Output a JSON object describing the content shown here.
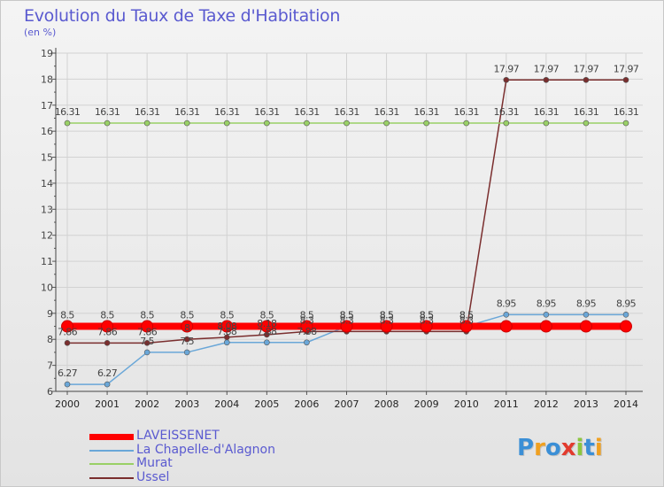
{
  "header": {
    "title": "Evolution du Taux de Taxe d'Habitation",
    "unit": "(en %)"
  },
  "logo": {
    "text": "Proxiti",
    "letters": [
      {
        "ch": "P",
        "color": "#3b8fd6"
      },
      {
        "ch": "r",
        "color": "#f0a020"
      },
      {
        "ch": "o",
        "color": "#3b8fd6"
      },
      {
        "ch": "x",
        "color": "#e23b2e"
      },
      {
        "ch": "i",
        "color": "#8cc63f"
      },
      {
        "ch": "t",
        "color": "#3b8fd6"
      },
      {
        "ch": "i",
        "color": "#f0a020"
      }
    ]
  },
  "chart_data": {
    "type": "line",
    "title": "Evolution du Taux de Taxe d'Habitation",
    "ylabel": "(en %)",
    "xlabel": "",
    "x": [
      "2000",
      "2001",
      "2002",
      "2003",
      "2004",
      "2005",
      "2006",
      "2007",
      "2008",
      "2009",
      "2010",
      "2011",
      "2012",
      "2013",
      "2014"
    ],
    "ylim": [
      6,
      19
    ],
    "yticks": [
      "6",
      "7",
      "8",
      "9",
      "10",
      "11",
      "12",
      "13",
      "14",
      "15",
      "16",
      "17",
      "18",
      "19"
    ],
    "grid": true,
    "legend_position": "bottom-left",
    "series": [
      {
        "name": "LAVEISSENET",
        "color": "#ff0000",
        "values": [
          8.5,
          8.5,
          8.5,
          8.5,
          8.5,
          8.5,
          8.5,
          8.5,
          8.5,
          8.5,
          8.5,
          8.5,
          8.5,
          8.5,
          8.5
        ],
        "labels": [
          "8.5",
          "8.5",
          "8.5",
          "8.5",
          "8.5",
          "8.5",
          "8.5",
          "8.5",
          "8.5",
          "8.5",
          "8.5",
          "",
          "",
          "",
          ""
        ]
      },
      {
        "name": "La Chapelle-d'Alagnon",
        "color": "#6aa7d8",
        "values": [
          6.27,
          6.27,
          7.5,
          7.5,
          7.88,
          7.88,
          7.88,
          8.5,
          8.5,
          8.5,
          8.5,
          8.95,
          8.95,
          8.95,
          8.95
        ],
        "labels": [
          "6.27",
          "6.27",
          "7.5",
          "7.5",
          "7.88",
          "7.88",
          "7.88",
          "8.5",
          "8.5",
          "8.5",
          "8.5",
          "8.95",
          "8.95",
          "8.95",
          "8.95"
        ]
      },
      {
        "name": "Murat",
        "color": "#99d066",
        "values": [
          16.31,
          16.31,
          16.31,
          16.31,
          16.31,
          16.31,
          16.31,
          16.31,
          16.31,
          16.31,
          16.31,
          16.31,
          16.31,
          16.31,
          16.31
        ],
        "labels": [
          "16.31",
          "16.31",
          "16.31",
          "16.31",
          "16.31",
          "16.31",
          "16.31",
          "16.31",
          "16.31",
          "16.31",
          "16.31",
          "16.31",
          "16.31",
          "16.31",
          "16.31"
        ]
      },
      {
        "name": "Ussel",
        "color": "#7a2e2e",
        "values": [
          7.86,
          7.86,
          7.86,
          8.0,
          8.08,
          8.18,
          8.3,
          8.3,
          8.3,
          8.3,
          8.3,
          17.97,
          17.97,
          17.97,
          17.97
        ],
        "labels": [
          "7.86",
          "7.86",
          "7.86",
          "8",
          "8.08",
          "8.18",
          "8.3",
          "8.3",
          "8.3",
          "8.3",
          "8.3",
          "17.97",
          "17.97",
          "17.97",
          "17.97"
        ]
      }
    ]
  }
}
